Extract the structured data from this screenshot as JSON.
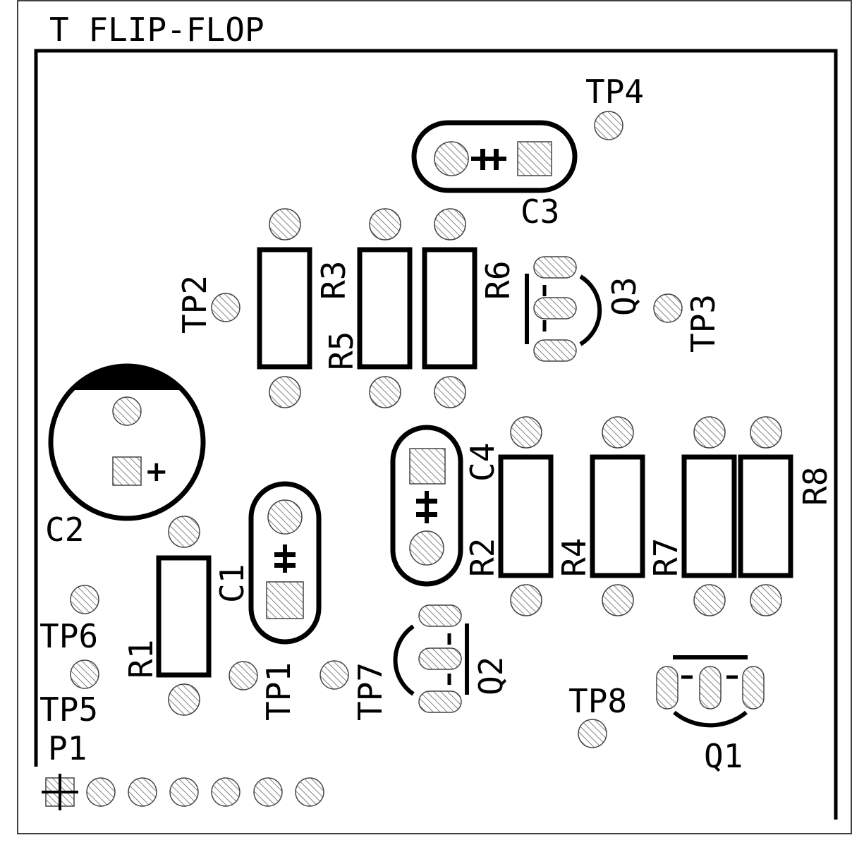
{
  "title": "T FLIP-FLOP",
  "components": {
    "C1": "C1",
    "C2": "C2",
    "C3": "C3",
    "C4": "C4",
    "R1": "R1",
    "R2": "R2",
    "R3": "R3",
    "R4": "R4",
    "R5": "R5",
    "R6": "R6",
    "R7": "R7",
    "R8": "R8",
    "Q1": "Q1",
    "Q2": "Q2",
    "Q3": "Q3",
    "P1": "P1"
  },
  "test_points": {
    "TP1": "TP1",
    "TP2": "TP2",
    "TP3": "TP3",
    "TP4": "TP4",
    "TP5": "TP5",
    "TP6": "TP6",
    "TP7": "TP7",
    "TP8": "TP8"
  },
  "polarity_mark": "+",
  "colors": {
    "ink": "#000000",
    "pad_hatch": "#555555",
    "background": "#ffffff"
  }
}
